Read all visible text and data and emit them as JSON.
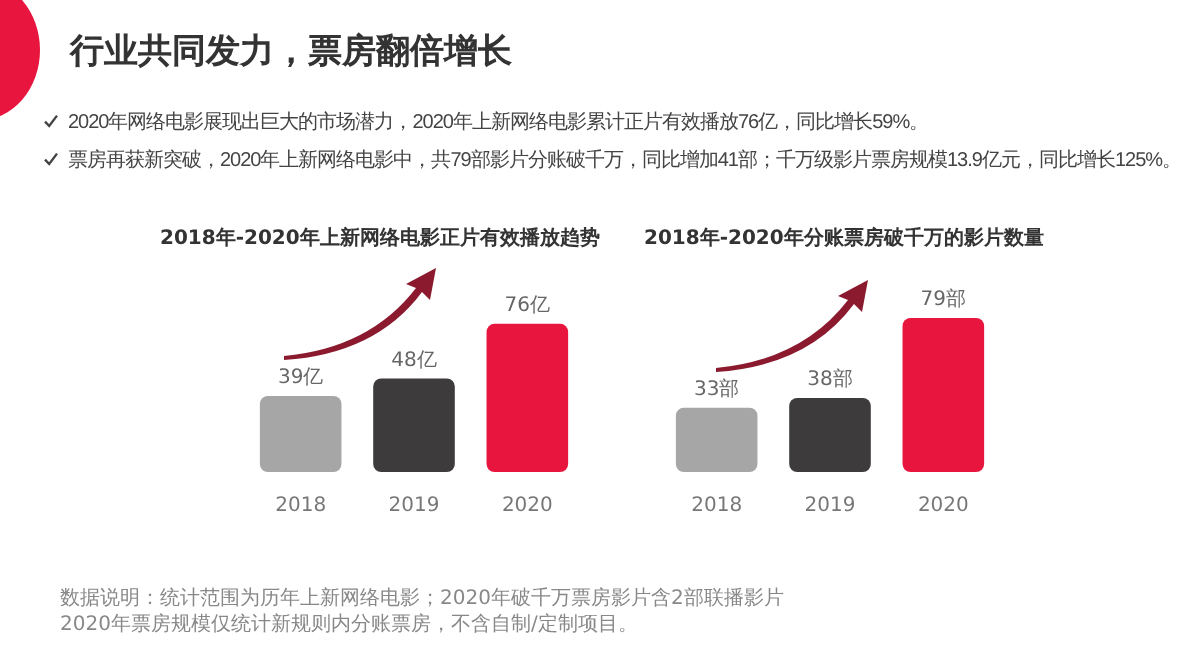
{
  "chart_data": [
    {
      "type": "bar",
      "title": "2018年-2020年上新网络电影正片有效播放趋势",
      "categories": [
        "2018",
        "2019",
        "2020"
      ],
      "values": [
        39,
        48,
        76
      ],
      "colors": [
        "#a6a6a6",
        "#3d3b3c",
        "#e8163f"
      ],
      "value_labels": [
        "39亿",
        "48亿",
        "76亿"
      ],
      "grid": false,
      "legend": false,
      "tick_labels": "x",
      "annotations": [
        "行业共同发力，票房翻倍增长",
        "2020年网络电影展现出巨大的市场潜力，2020年上新网络电影累计正片有效播放76亿，同比增长59%。",
        "票房再获新突破，2020年上新网络电影中，共79部影片分账破千万，同比增加41部；千万级影片票房规模13.9亿元，同比增长125%。",
        "数据说明：统计范围为历年上新网络电影；2020年破千万票房影片含2部联播影片",
        "2020年票房规模仅统计新规则内分账票房，不含自制/定制项目。"
      ]
    },
    {
      "type": "bar",
      "title": "2018年-2020年分账票房破千万的影片数量",
      "categories": [
        "2018",
        "2019",
        "2020"
      ],
      "values": [
        33,
        38,
        79
      ],
      "colors": [
        "#a6a6a6",
        "#3d3b3c",
        "#e8163f"
      ],
      "value_labels": [
        "33部",
        "38部",
        "79部"
      ],
      "grid": false,
      "legend": false,
      "tick_labels": "x"
    }
  ]
}
